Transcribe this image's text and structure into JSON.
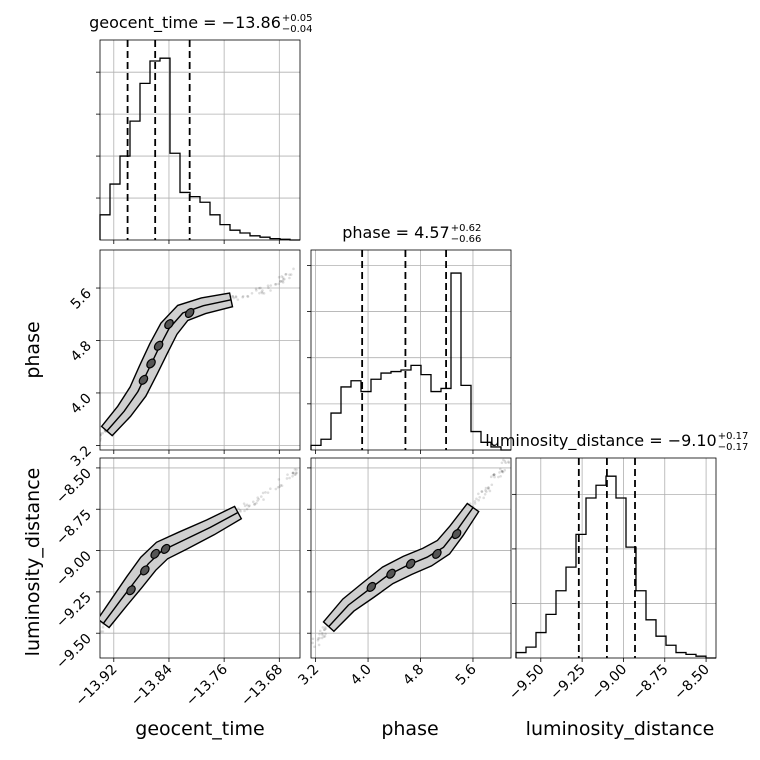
{
  "chart_data": {
    "type": "corner",
    "parameters": [
      "geocent_time",
      "phase",
      "luminosity_distance"
    ],
    "axis_labels": [
      "geocent_time",
      "phase",
      "luminosity_distance"
    ],
    "titles": [
      {
        "name": "geocent_time",
        "median": "−13.86",
        "plus": "+0.05",
        "minus": "−0.04"
      },
      {
        "name": "phase",
        "median": "4.57",
        "plus": "+0.62",
        "minus": "−0.66"
      },
      {
        "name": "luminosity_distance",
        "median": "−9.10",
        "plus": "+0.17",
        "minus": "−0.17"
      }
    ],
    "ticks": {
      "geocent_time": {
        "values": [
          -13.92,
          -13.84,
          -13.76,
          -13.68
        ],
        "labels": [
          "−13.92",
          "−13.84",
          "−13.76",
          "−13.68"
        ]
      },
      "phase": {
        "values": [
          3.2,
          4.0,
          4.8,
          5.6
        ],
        "labels": [
          "3.2",
          "4.0",
          "4.8",
          "5.6"
        ]
      },
      "luminosity_distance": {
        "values": [
          -9.5,
          -9.25,
          -9.0,
          -8.75,
          -8.5
        ],
        "labels": [
          "−9.50",
          "−9.25",
          "−9.00",
          "−8.75",
          "−8.50"
        ]
      }
    },
    "ranges": {
      "geocent_time": [
        -13.94,
        -13.65
      ],
      "phase": [
        3.13,
        6.18
      ],
      "luminosity_distance": [
        -9.65,
        -8.44
      ]
    },
    "histograms": [
      {
        "parameter": "geocent_time",
        "bin_edges": [
          -13.94,
          -13.9255,
          -13.911,
          -13.8965,
          -13.882,
          -13.8675,
          -13.853,
          -13.8385,
          -13.824,
          -13.8095,
          -13.795,
          -13.7805,
          -13.766,
          -13.7515,
          -13.737,
          -13.7225,
          -13.708,
          -13.6935,
          -13.679,
          -13.6645,
          -13.65
        ],
        "counts": [
          0.18,
          0.4,
          0.6,
          0.85,
          1.12,
          1.28,
          1.3,
          0.62,
          0.34,
          0.31,
          0.27,
          0.18,
          0.11,
          0.07,
          0.05,
          0.03,
          0.02,
          0.01,
          0.005,
          0.0
        ],
        "quantiles": [
          -13.9,
          -13.86,
          -13.81
        ],
        "yticks": [
          0.3,
          0.6,
          0.9,
          1.2
        ],
        "ymax": 1.43
      },
      {
        "parameter": "phase",
        "bin_edges": [
          3.13,
          3.2825,
          3.435,
          3.5875,
          3.74,
          3.8925,
          4.045,
          4.1975,
          4.35,
          4.5025,
          4.655,
          4.8075,
          4.96,
          5.1125,
          5.265,
          5.4175,
          5.57,
          5.7225,
          5.875,
          6.0275,
          6.18
        ],
        "counts": [
          0.03,
          0.07,
          0.24,
          0.41,
          0.45,
          0.38,
          0.46,
          0.5,
          0.51,
          0.52,
          0.55,
          0.49,
          0.38,
          0.4,
          1.15,
          0.42,
          0.12,
          0.05,
          0.02,
          0.0
        ],
        "quantiles": [
          3.91,
          4.57,
          5.19
        ],
        "yticks": [
          0.3,
          0.6,
          0.9,
          1.2
        ],
        "ymax": 1.3
      },
      {
        "parameter": "luminosity_distance",
        "bin_edges": [
          -9.65,
          -9.5895,
          -9.529,
          -9.4685,
          -9.408,
          -9.3475,
          -9.287,
          -9.2265,
          -9.166,
          -9.1055,
          -9.045,
          -8.9845,
          -8.924,
          -8.8635,
          -8.803,
          -8.7425,
          -8.682,
          -8.6215,
          -8.561,
          -8.5005,
          -8.44
        ],
        "counts": [
          0.03,
          0.06,
          0.14,
          0.24,
          0.37,
          0.5,
          0.68,
          0.88,
          0.95,
          1.0,
          0.88,
          0.61,
          0.37,
          0.21,
          0.12,
          0.07,
          0.03,
          0.02,
          0.01,
          0.0
        ],
        "quantiles": [
          -9.27,
          -9.1,
          -8.93
        ],
        "yticks": [
          0.3,
          0.6,
          0.9
        ],
        "ymax": 1.1
      }
    ],
    "pair_plots": [
      {
        "x": "geocent_time",
        "y": "phase",
        "ridge": [
          [
            -13.95,
            3.2
          ],
          [
            -13.93,
            3.42
          ],
          [
            -13.905,
            3.72
          ],
          [
            -13.885,
            4.02
          ],
          [
            -13.87,
            4.35
          ],
          [
            -13.855,
            4.68
          ],
          [
            -13.84,
            4.98
          ],
          [
            -13.82,
            5.22
          ],
          [
            -13.79,
            5.33
          ],
          [
            -13.75,
            5.42
          ],
          [
            -13.7,
            5.58
          ],
          [
            -13.655,
            5.86
          ]
        ],
        "core_ellipses": [
          [
            -13.877,
            4.2
          ],
          [
            -13.866,
            4.45
          ],
          [
            -13.855,
            4.72
          ],
          [
            -13.84,
            5.05
          ],
          [
            -13.81,
            5.22
          ]
        ]
      },
      {
        "x": "geocent_time",
        "y": "luminosity_distance",
        "ridge": [
          [
            -13.955,
            -9.58
          ],
          [
            -13.935,
            -9.44
          ],
          [
            -13.91,
            -9.3
          ],
          [
            -13.89,
            -9.19
          ],
          [
            -13.87,
            -9.08
          ],
          [
            -13.85,
            -9.0
          ],
          [
            -13.82,
            -8.94
          ],
          [
            -13.78,
            -8.86
          ],
          [
            -13.74,
            -8.77
          ],
          [
            -13.7,
            -8.67
          ],
          [
            -13.655,
            -8.52
          ]
        ],
        "core_ellipses": [
          [
            -13.895,
            -9.24
          ],
          [
            -13.875,
            -9.12
          ],
          [
            -13.86,
            -9.02
          ],
          [
            -13.845,
            -8.99
          ]
        ]
      },
      {
        "x": "phase",
        "y": "luminosity_distance",
        "ridge": [
          [
            3.15,
            -9.58
          ],
          [
            3.4,
            -9.46
          ],
          [
            3.7,
            -9.33
          ],
          [
            4.0,
            -9.24
          ],
          [
            4.3,
            -9.15
          ],
          [
            4.6,
            -9.09
          ],
          [
            4.9,
            -9.04
          ],
          [
            5.15,
            -8.98
          ],
          [
            5.35,
            -8.88
          ],
          [
            5.6,
            -8.74
          ],
          [
            5.85,
            -8.6
          ],
          [
            6.15,
            -8.45
          ]
        ],
        "core_ellipses": [
          [
            4.05,
            -9.22
          ],
          [
            4.35,
            -9.14
          ],
          [
            4.65,
            -9.08
          ],
          [
            5.05,
            -9.02
          ],
          [
            5.35,
            -8.9
          ]
        ]
      }
    ]
  }
}
